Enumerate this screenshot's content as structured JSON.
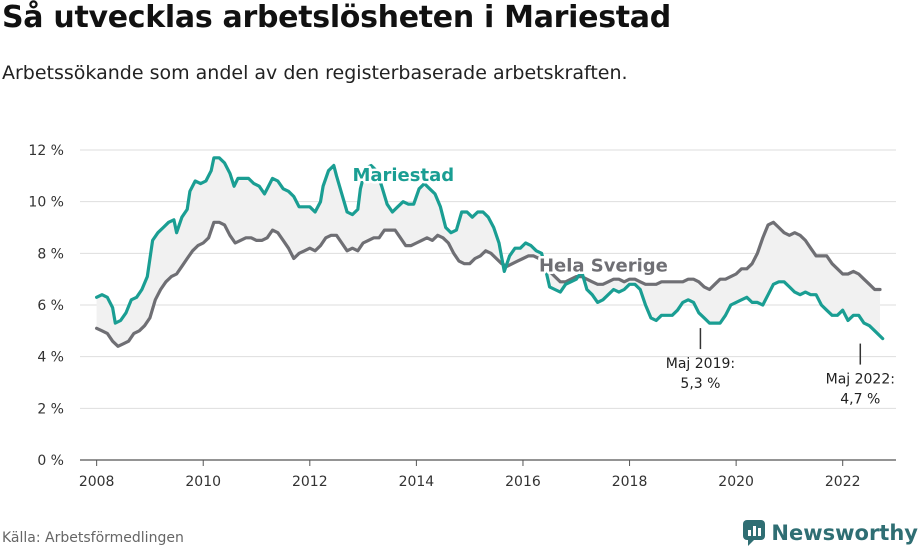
{
  "title": "Så utvecklas arbetslösheten i Mariestad",
  "subtitle": "Arbetssökande som andel av den registerbaserade arbetskraften.",
  "source": "Källa: Arbetsförmedlingen",
  "logo": {
    "text": "Newsworthy",
    "icon": "newsworthy-logo-icon",
    "color": "#2f6e73"
  },
  "chart_data": {
    "type": "line",
    "xlim": [
      2007.5,
      2023.0
    ],
    "ylim": [
      0,
      12
    ],
    "x_ticks": [
      2008,
      2010,
      2012,
      2014,
      2016,
      2018,
      2020,
      2022
    ],
    "y_ticks": [
      0,
      2,
      4,
      6,
      8,
      10,
      12
    ],
    "y_tick_labels": [
      "0 %",
      "2 %",
      "4 %",
      "6 %",
      "8 %",
      "10 %",
      "12 %"
    ],
    "grid": "horizontal",
    "band_between_series": true,
    "series": [
      {
        "name": "Mariestad",
        "color": "#1a9e93",
        "points": [
          [
            2008.0,
            6.3
          ],
          [
            2008.1,
            6.4
          ],
          [
            2008.2,
            6.3
          ],
          [
            2008.3,
            5.9
          ],
          [
            2008.35,
            5.3
          ],
          [
            2008.45,
            5.4
          ],
          [
            2008.55,
            5.7
          ],
          [
            2008.65,
            6.2
          ],
          [
            2008.75,
            6.3
          ],
          [
            2008.85,
            6.6
          ],
          [
            2008.95,
            7.1
          ],
          [
            2009.05,
            8.5
          ],
          [
            2009.15,
            8.8
          ],
          [
            2009.25,
            9.0
          ],
          [
            2009.35,
            9.2
          ],
          [
            2009.45,
            9.3
          ],
          [
            2009.5,
            8.8
          ],
          [
            2009.6,
            9.4
          ],
          [
            2009.7,
            9.7
          ],
          [
            2009.75,
            10.4
          ],
          [
            2009.85,
            10.8
          ],
          [
            2009.95,
            10.7
          ],
          [
            2010.05,
            10.8
          ],
          [
            2010.15,
            11.2
          ],
          [
            2010.2,
            11.7
          ],
          [
            2010.3,
            11.7
          ],
          [
            2010.4,
            11.5
          ],
          [
            2010.5,
            11.1
          ],
          [
            2010.58,
            10.6
          ],
          [
            2010.65,
            10.9
          ],
          [
            2010.75,
            10.9
          ],
          [
            2010.85,
            10.9
          ],
          [
            2010.95,
            10.7
          ],
          [
            2011.05,
            10.6
          ],
          [
            2011.15,
            10.3
          ],
          [
            2011.2,
            10.5
          ],
          [
            2011.3,
            10.9
          ],
          [
            2011.4,
            10.8
          ],
          [
            2011.5,
            10.5
          ],
          [
            2011.6,
            10.4
          ],
          [
            2011.7,
            10.2
          ],
          [
            2011.8,
            9.8
          ],
          [
            2011.9,
            9.8
          ],
          [
            2012.0,
            9.8
          ],
          [
            2012.1,
            9.6
          ],
          [
            2012.2,
            10.0
          ],
          [
            2012.25,
            10.6
          ],
          [
            2012.35,
            11.2
          ],
          [
            2012.45,
            11.4
          ],
          [
            2012.5,
            11.0
          ],
          [
            2012.6,
            10.3
          ],
          [
            2012.7,
            9.6
          ],
          [
            2012.8,
            9.5
          ],
          [
            2012.9,
            9.7
          ],
          [
            2012.95,
            10.5
          ],
          [
            2013.05,
            11.3
          ],
          [
            2013.15,
            11.4
          ],
          [
            2013.25,
            11.2
          ],
          [
            2013.35,
            10.6
          ],
          [
            2013.45,
            9.9
          ],
          [
            2013.55,
            9.6
          ],
          [
            2013.65,
            9.8
          ],
          [
            2013.75,
            10.0
          ],
          [
            2013.85,
            9.9
          ],
          [
            2013.95,
            9.9
          ],
          [
            2014.05,
            10.5
          ],
          [
            2014.15,
            10.7
          ],
          [
            2014.25,
            10.5
          ],
          [
            2014.35,
            10.3
          ],
          [
            2014.45,
            9.8
          ],
          [
            2014.55,
            9.0
          ],
          [
            2014.65,
            8.8
          ],
          [
            2014.75,
            8.9
          ],
          [
            2014.85,
            9.6
          ],
          [
            2014.95,
            9.6
          ],
          [
            2015.05,
            9.4
          ],
          [
            2015.15,
            9.6
          ],
          [
            2015.25,
            9.6
          ],
          [
            2015.35,
            9.4
          ],
          [
            2015.45,
            9.0
          ],
          [
            2015.55,
            8.4
          ],
          [
            2015.65,
            7.3
          ],
          [
            2015.75,
            7.9
          ],
          [
            2015.85,
            8.2
          ],
          [
            2015.95,
            8.2
          ],
          [
            2016.05,
            8.4
          ],
          [
            2016.15,
            8.3
          ],
          [
            2016.25,
            8.1
          ],
          [
            2016.35,
            8.0
          ],
          [
            2016.4,
            7.6
          ],
          [
            2016.5,
            6.7
          ],
          [
            2016.6,
            6.6
          ],
          [
            2016.7,
            6.5
          ],
          [
            2016.8,
            6.8
          ],
          [
            2016.9,
            6.9
          ],
          [
            2017.0,
            7.0
          ],
          [
            2017.1,
            7.3
          ],
          [
            2017.2,
            6.6
          ],
          [
            2017.3,
            6.4
          ],
          [
            2017.4,
            6.1
          ],
          [
            2017.5,
            6.2
          ],
          [
            2017.6,
            6.4
          ],
          [
            2017.7,
            6.6
          ],
          [
            2017.8,
            6.5
          ],
          [
            2017.9,
            6.6
          ],
          [
            2018.0,
            6.8
          ],
          [
            2018.1,
            6.8
          ],
          [
            2018.2,
            6.6
          ],
          [
            2018.3,
            6.0
          ],
          [
            2018.4,
            5.5
          ],
          [
            2018.5,
            5.4
          ],
          [
            2018.6,
            5.6
          ],
          [
            2018.7,
            5.6
          ],
          [
            2018.8,
            5.6
          ],
          [
            2018.9,
            5.8
          ],
          [
            2019.0,
            6.1
          ],
          [
            2019.1,
            6.2
          ],
          [
            2019.2,
            6.1
          ],
          [
            2019.3,
            5.7
          ],
          [
            2019.4,
            5.5
          ],
          [
            2019.5,
            5.3
          ],
          [
            2019.6,
            5.3
          ],
          [
            2019.7,
            5.3
          ],
          [
            2019.8,
            5.6
          ],
          [
            2019.9,
            6.0
          ],
          [
            2020.0,
            6.1
          ],
          [
            2020.1,
            6.2
          ],
          [
            2020.2,
            6.3
          ],
          [
            2020.3,
            6.1
          ],
          [
            2020.4,
            6.1
          ],
          [
            2020.5,
            6.0
          ],
          [
            2020.6,
            6.4
          ],
          [
            2020.7,
            6.8
          ],
          [
            2020.8,
            6.9
          ],
          [
            2020.9,
            6.9
          ],
          [
            2021.0,
            6.7
          ],
          [
            2021.1,
            6.5
          ],
          [
            2021.2,
            6.4
          ],
          [
            2021.3,
            6.5
          ],
          [
            2021.4,
            6.4
          ],
          [
            2021.5,
            6.4
          ],
          [
            2021.6,
            6.0
          ],
          [
            2021.7,
            5.8
          ],
          [
            2021.8,
            5.6
          ],
          [
            2021.9,
            5.6
          ],
          [
            2022.0,
            5.8
          ],
          [
            2022.1,
            5.4
          ],
          [
            2022.2,
            5.6
          ],
          [
            2022.3,
            5.6
          ],
          [
            2022.4,
            5.3
          ],
          [
            2022.5,
            5.2
          ],
          [
            2022.6,
            5.0
          ],
          [
            2022.75,
            4.7
          ]
        ]
      },
      {
        "name": "Hela Sverige",
        "color": "#6f6f74",
        "points": [
          [
            2008.0,
            5.1
          ],
          [
            2008.1,
            5.0
          ],
          [
            2008.2,
            4.9
          ],
          [
            2008.3,
            4.6
          ],
          [
            2008.4,
            4.4
          ],
          [
            2008.5,
            4.5
          ],
          [
            2008.6,
            4.6
          ],
          [
            2008.7,
            4.9
          ],
          [
            2008.8,
            5.0
          ],
          [
            2008.9,
            5.2
          ],
          [
            2009.0,
            5.5
          ],
          [
            2009.1,
            6.2
          ],
          [
            2009.2,
            6.6
          ],
          [
            2009.3,
            6.9
          ],
          [
            2009.4,
            7.1
          ],
          [
            2009.5,
            7.2
          ],
          [
            2009.6,
            7.5
          ],
          [
            2009.7,
            7.8
          ],
          [
            2009.8,
            8.1
          ],
          [
            2009.9,
            8.3
          ],
          [
            2010.0,
            8.4
          ],
          [
            2010.1,
            8.6
          ],
          [
            2010.2,
            9.2
          ],
          [
            2010.3,
            9.2
          ],
          [
            2010.4,
            9.1
          ],
          [
            2010.5,
            8.7
          ],
          [
            2010.6,
            8.4
          ],
          [
            2010.7,
            8.5
          ],
          [
            2010.8,
            8.6
          ],
          [
            2010.9,
            8.6
          ],
          [
            2011.0,
            8.5
          ],
          [
            2011.1,
            8.5
          ],
          [
            2011.2,
            8.6
          ],
          [
            2011.3,
            8.9
          ],
          [
            2011.4,
            8.8
          ],
          [
            2011.5,
            8.5
          ],
          [
            2011.6,
            8.2
          ],
          [
            2011.7,
            7.8
          ],
          [
            2011.8,
            8.0
          ],
          [
            2011.9,
            8.1
          ],
          [
            2012.0,
            8.2
          ],
          [
            2012.1,
            8.1
          ],
          [
            2012.2,
            8.3
          ],
          [
            2012.3,
            8.6
          ],
          [
            2012.4,
            8.7
          ],
          [
            2012.5,
            8.7
          ],
          [
            2012.6,
            8.4
          ],
          [
            2012.7,
            8.1
          ],
          [
            2012.8,
            8.2
          ],
          [
            2012.9,
            8.1
          ],
          [
            2013.0,
            8.4
          ],
          [
            2013.1,
            8.5
          ],
          [
            2013.2,
            8.6
          ],
          [
            2013.3,
            8.6
          ],
          [
            2013.4,
            8.9
          ],
          [
            2013.5,
            8.9
          ],
          [
            2013.6,
            8.9
          ],
          [
            2013.7,
            8.6
          ],
          [
            2013.8,
            8.3
          ],
          [
            2013.9,
            8.3
          ],
          [
            2014.0,
            8.4
          ],
          [
            2014.1,
            8.5
          ],
          [
            2014.2,
            8.6
          ],
          [
            2014.3,
            8.5
          ],
          [
            2014.4,
            8.7
          ],
          [
            2014.5,
            8.6
          ],
          [
            2014.6,
            8.4
          ],
          [
            2014.7,
            8.0
          ],
          [
            2014.8,
            7.7
          ],
          [
            2014.9,
            7.6
          ],
          [
            2015.0,
            7.6
          ],
          [
            2015.1,
            7.8
          ],
          [
            2015.2,
            7.9
          ],
          [
            2015.3,
            8.1
          ],
          [
            2015.4,
            8.0
          ],
          [
            2015.5,
            7.8
          ],
          [
            2015.6,
            7.6
          ],
          [
            2015.7,
            7.5
          ],
          [
            2015.8,
            7.6
          ],
          [
            2015.9,
            7.7
          ],
          [
            2016.0,
            7.8
          ],
          [
            2016.1,
            7.9
          ],
          [
            2016.2,
            7.9
          ],
          [
            2016.3,
            7.8
          ],
          [
            2016.4,
            7.6
          ],
          [
            2016.5,
            7.3
          ],
          [
            2016.6,
            7.1
          ],
          [
            2016.7,
            6.9
          ],
          [
            2016.8,
            6.9
          ],
          [
            2016.9,
            7.0
          ],
          [
            2017.0,
            7.1
          ],
          [
            2017.1,
            7.1
          ],
          [
            2017.2,
            7.0
          ],
          [
            2017.3,
            6.9
          ],
          [
            2017.4,
            6.8
          ],
          [
            2017.5,
            6.8
          ],
          [
            2017.6,
            6.9
          ],
          [
            2017.7,
            7.0
          ],
          [
            2017.8,
            7.0
          ],
          [
            2017.9,
            6.9
          ],
          [
            2018.0,
            7.0
          ],
          [
            2018.1,
            7.0
          ],
          [
            2018.2,
            6.9
          ],
          [
            2018.3,
            6.8
          ],
          [
            2018.4,
            6.8
          ],
          [
            2018.5,
            6.8
          ],
          [
            2018.6,
            6.9
          ],
          [
            2018.7,
            6.9
          ],
          [
            2018.8,
            6.9
          ],
          [
            2018.9,
            6.9
          ],
          [
            2019.0,
            6.9
          ],
          [
            2019.1,
            7.0
          ],
          [
            2019.2,
            7.0
          ],
          [
            2019.3,
            6.9
          ],
          [
            2019.4,
            6.7
          ],
          [
            2019.5,
            6.6
          ],
          [
            2019.6,
            6.8
          ],
          [
            2019.7,
            7.0
          ],
          [
            2019.8,
            7.0
          ],
          [
            2019.9,
            7.1
          ],
          [
            2020.0,
            7.2
          ],
          [
            2020.1,
            7.4
          ],
          [
            2020.2,
            7.4
          ],
          [
            2020.3,
            7.6
          ],
          [
            2020.4,
            8.0
          ],
          [
            2020.5,
            8.6
          ],
          [
            2020.6,
            9.1
          ],
          [
            2020.7,
            9.2
          ],
          [
            2020.8,
            9.0
          ],
          [
            2020.9,
            8.8
          ],
          [
            2021.0,
            8.7
          ],
          [
            2021.1,
            8.8
          ],
          [
            2021.2,
            8.7
          ],
          [
            2021.3,
            8.5
          ],
          [
            2021.4,
            8.2
          ],
          [
            2021.5,
            7.9
          ],
          [
            2021.6,
            7.9
          ],
          [
            2021.7,
            7.9
          ],
          [
            2021.8,
            7.6
          ],
          [
            2021.9,
            7.4
          ],
          [
            2022.0,
            7.2
          ],
          [
            2022.1,
            7.2
          ],
          [
            2022.2,
            7.3
          ],
          [
            2022.3,
            7.2
          ],
          [
            2022.4,
            7.0
          ],
          [
            2022.5,
            6.8
          ],
          [
            2022.6,
            6.6
          ],
          [
            2022.7,
            6.6
          ]
        ]
      }
    ],
    "series_labels": [
      {
        "text": "Mariestad",
        "x": 2012.8,
        "y": 10.8
      },
      {
        "text": "Hela Sverige",
        "x": 2016.3,
        "y": 7.3
      }
    ],
    "annotations": [
      {
        "line1": "Maj 2019:",
        "line2": "5,3 %",
        "x": 2019.33,
        "y": 5.3
      },
      {
        "line1": "Maj 2022:",
        "line2": "4,7 %",
        "x": 2022.33,
        "y": 4.7
      }
    ]
  }
}
